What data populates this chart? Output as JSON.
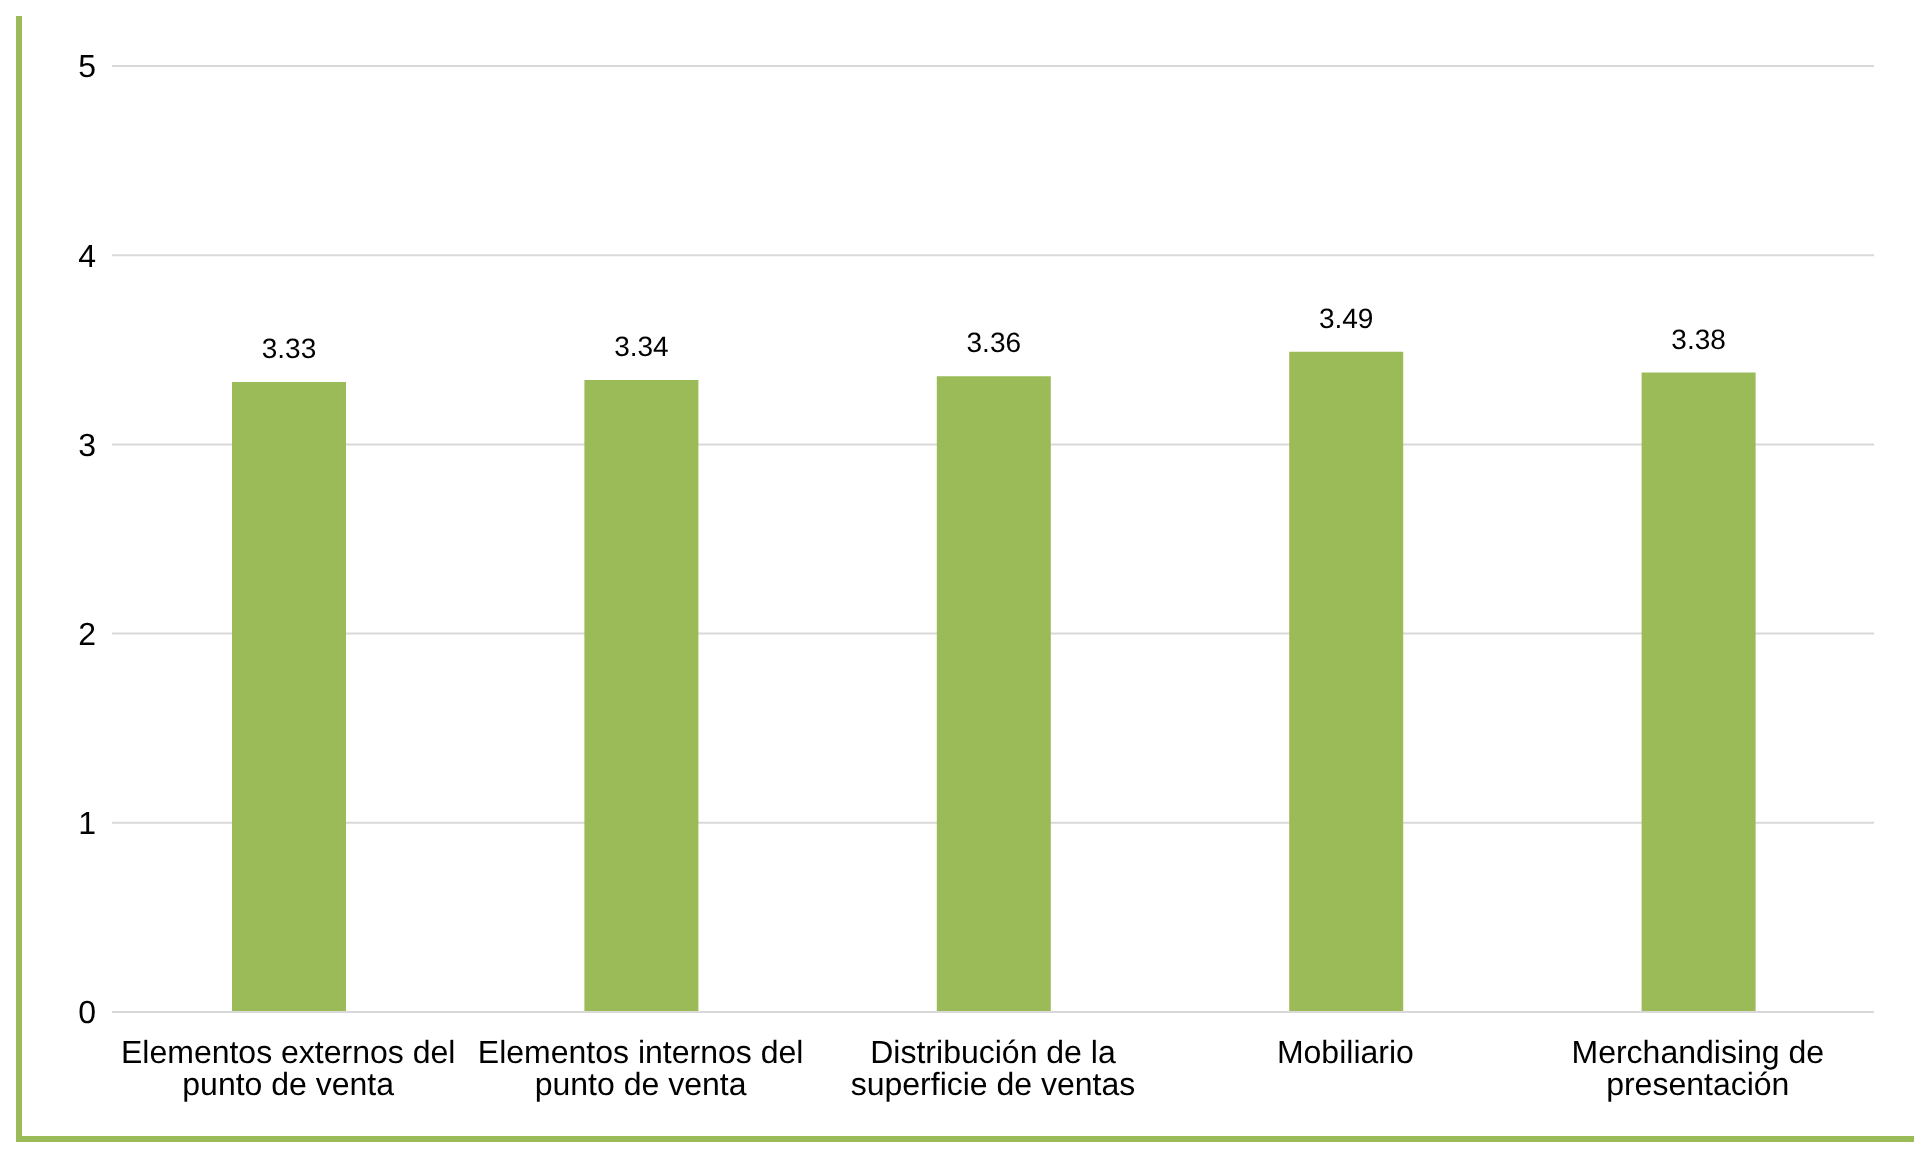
{
  "chart_data": {
    "type": "bar",
    "categories": [
      "Elementos externos del punto de venta",
      "Elementos internos del punto de venta",
      "Distribución de la superficie de ventas",
      "Mobiliario",
      "Merchandising de presentación"
    ],
    "values": [
      3.33,
      3.34,
      3.36,
      3.49,
      3.38
    ],
    "color": "#9bbb59",
    "ylim": [
      0,
      5
    ],
    "yticks": [
      0,
      1,
      2,
      3,
      4,
      5
    ],
    "grid": "y",
    "data_labels": true
  }
}
